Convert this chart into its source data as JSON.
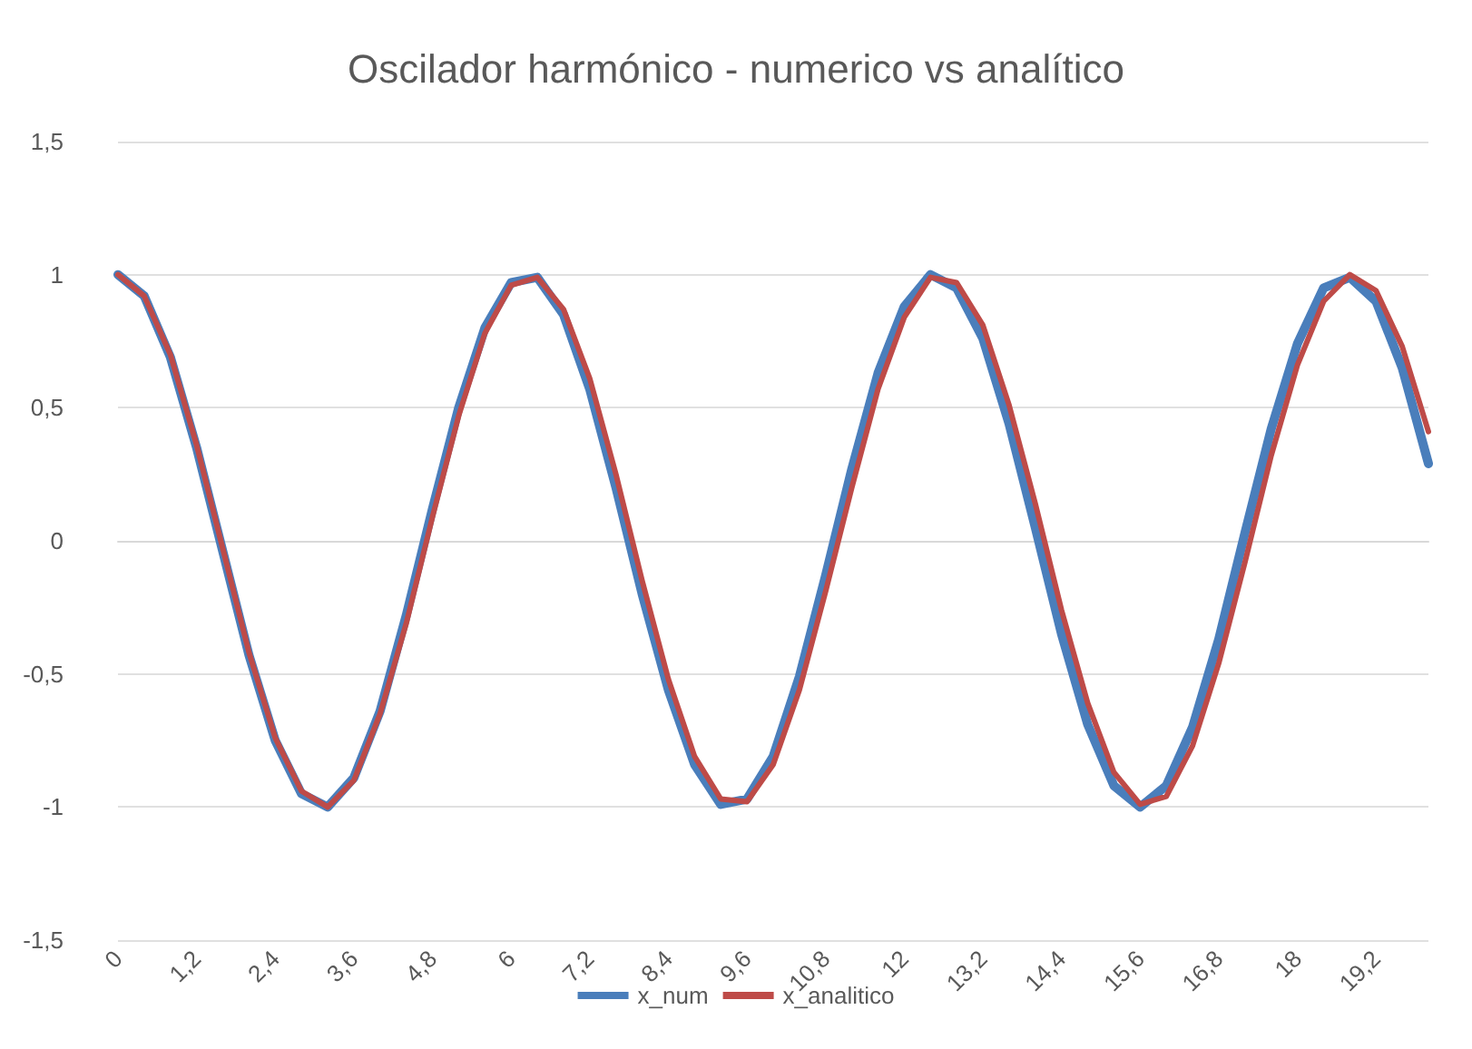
{
  "chart_data": {
    "type": "line",
    "title": "Oscilador harmónico - numerico vs analítico",
    "categories": [
      "0",
      null,
      null,
      "1,2",
      null,
      null,
      "2,4",
      null,
      null,
      "3,6",
      null,
      null,
      "4,8",
      null,
      null,
      "6",
      null,
      null,
      "7,2",
      null,
      null,
      "8,4",
      null,
      null,
      "9,6",
      null,
      null,
      "10,8",
      null,
      null,
      "12",
      null,
      null,
      "13,2",
      null,
      null,
      "14,4",
      null,
      null,
      "15,6",
      null,
      null,
      "16,8",
      null,
      null,
      "18",
      null,
      null,
      "19,2",
      null,
      null
    ],
    "series": [
      {
        "name": "x_num",
        "color": "#4a7ebb",
        "values": [
          1.0,
          0.92,
          0.69,
          0.35,
          -0.04,
          -0.43,
          -0.75,
          -0.95,
          -1.0,
          -0.89,
          -0.64,
          -0.28,
          0.12,
          0.5,
          0.8,
          0.97,
          0.99,
          0.85,
          0.57,
          0.2,
          -0.2,
          -0.56,
          -0.84,
          -0.99,
          -0.97,
          -0.81,
          -0.51,
          -0.13,
          0.27,
          0.63,
          0.88,
          1.0,
          0.95,
          0.76,
          0.44,
          0.05,
          -0.35,
          -0.69,
          -0.92,
          -1.0,
          -0.92,
          -0.7,
          -0.37,
          0.03,
          0.42,
          0.74,
          0.95,
          0.99,
          0.9,
          0.65,
          0.29
        ]
      },
      {
        "name": "x_analitico",
        "color": "#be4b48",
        "values": [
          1.0,
          0.92,
          0.7,
          0.36,
          -0.03,
          -0.42,
          -0.74,
          -0.94,
          -1.0,
          -0.9,
          -0.65,
          -0.31,
          0.09,
          0.47,
          0.78,
          0.96,
          0.99,
          0.87,
          0.61,
          0.25,
          -0.15,
          -0.52,
          -0.81,
          -0.97,
          -0.98,
          -0.84,
          -0.56,
          -0.19,
          0.2,
          0.57,
          0.84,
          0.99,
          0.97,
          0.81,
          0.51,
          0.14,
          -0.26,
          -0.61,
          -0.87,
          -0.99,
          -0.96,
          -0.77,
          -0.46,
          -0.08,
          0.32,
          0.66,
          0.9,
          1.0,
          0.94,
          0.73,
          0.41
        ]
      }
    ],
    "ylim": [
      -1.5,
      1.5
    ],
    "yticks": [
      {
        "value": -1.5,
        "label": "-1,5"
      },
      -1,
      {
        "value": -0.5,
        "label": "-0,5"
      },
      0,
      {
        "value": 0.5,
        "label": "0,5"
      },
      1,
      {
        "value": 1.5,
        "label": "1,5"
      }
    ],
    "grid": "y",
    "legend": "bottom",
    "marker": "none",
    "line_style": "solid"
  }
}
